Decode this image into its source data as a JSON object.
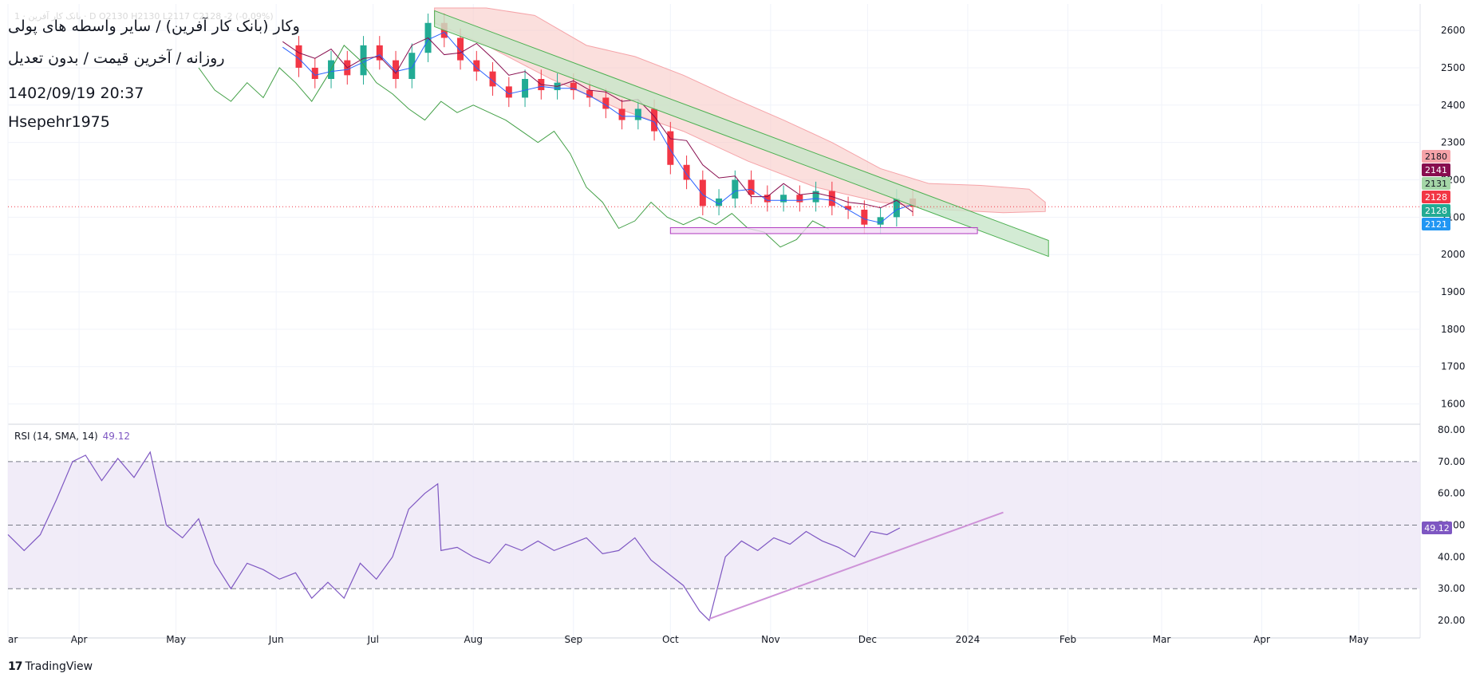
{
  "overlay": {
    "title": "وکار (بانک کار آفرین) / سایر واسطه های پولی",
    "subtitle": "روزانه / آخرین قیمت / بدون تعدیل",
    "datetime": "1402/09/19 20:37",
    "author": "Hsepehr1975",
    "ohlc_line": "بانک کار آفرین · 1 · D  O2130  H2130  L2117  C2128  -2 (-0.09%)"
  },
  "footer": {
    "brand": "TradingView"
  },
  "colors": {
    "up": "#22ab94",
    "down": "#f23645",
    "kijun": "#880e4f",
    "tenkan": "#2962ff",
    "chikou": "#43a047",
    "cloud": "#f8c9c6",
    "channel_fill": "#c8e6c9",
    "channel_stroke": "#4caf50",
    "zone_fill": "#f3d9f5",
    "zone_stroke": "#b03cbf",
    "rsi": "#7e57c2",
    "rsi_band": "#ede7f6"
  },
  "chart_data": [
    {
      "type": "candlestick",
      "title": "وکار (بانک کار آفرین) / سایر واسطه های پولی",
      "ylim": [
        1550,
        2660
      ],
      "yticks": [
        1600,
        1700,
        1800,
        1900,
        2000,
        2100,
        2200,
        2300,
        2400,
        2500,
        2600
      ],
      "xlim": [
        "2023-03-10",
        "2024-05-20"
      ],
      "xtick_labels": [
        {
          "label": "ar",
          "date": "2023-03-10"
        },
        {
          "label": "Apr",
          "date": "2023-04-01"
        },
        {
          "label": "May",
          "date": "2023-05-01"
        },
        {
          "label": "Jun",
          "date": "2023-06-01"
        },
        {
          "label": "Jul",
          "date": "2023-07-01"
        },
        {
          "label": "Aug",
          "date": "2023-08-01"
        },
        {
          "label": "Sep",
          "date": "2023-09-01"
        },
        {
          "label": "Oct",
          "date": "2023-10-01"
        },
        {
          "label": "Nov",
          "date": "2023-11-01"
        },
        {
          "label": "Dec",
          "date": "2023-12-01"
        },
        {
          "label": "2024",
          "date": "2024-01-01"
        },
        {
          "label": "Feb",
          "date": "2024-02-01"
        },
        {
          "label": "Mar",
          "date": "2024-03-01"
        },
        {
          "label": "Apr",
          "date": "2024-04-01"
        },
        {
          "label": "May",
          "date": "2024-05-01"
        }
      ],
      "price_close_series": [
        [
          "2023-06-03",
          2560
        ],
        [
          "2023-06-08",
          2500
        ],
        [
          "2023-06-13",
          2470
        ],
        [
          "2023-06-18",
          2520
        ],
        [
          "2023-06-23",
          2480
        ],
        [
          "2023-06-28",
          2560
        ],
        [
          "2023-07-03",
          2520
        ],
        [
          "2023-07-08",
          2470
        ],
        [
          "2023-07-13",
          2540
        ],
        [
          "2023-07-18",
          2620
        ],
        [
          "2023-07-23",
          2580
        ],
        [
          "2023-07-28",
          2520
        ],
        [
          "2023-08-02",
          2490
        ],
        [
          "2023-08-07",
          2450
        ],
        [
          "2023-08-12",
          2420
        ],
        [
          "2023-08-17",
          2470
        ],
        [
          "2023-08-22",
          2440
        ],
        [
          "2023-08-27",
          2460
        ],
        [
          "2023-09-01",
          2440
        ],
        [
          "2023-09-06",
          2420
        ],
        [
          "2023-09-11",
          2390
        ],
        [
          "2023-09-16",
          2360
        ],
        [
          "2023-09-21",
          2390
        ],
        [
          "2023-09-26",
          2330
        ],
        [
          "2023-10-01",
          2240
        ],
        [
          "2023-10-06",
          2200
        ],
        [
          "2023-10-11",
          2130
        ],
        [
          "2023-10-16",
          2150
        ],
        [
          "2023-10-21",
          2200
        ],
        [
          "2023-10-26",
          2160
        ],
        [
          "2023-10-31",
          2140
        ],
        [
          "2023-11-05",
          2160
        ],
        [
          "2023-11-10",
          2140
        ],
        [
          "2023-11-15",
          2170
        ],
        [
          "2023-11-20",
          2130
        ],
        [
          "2023-11-25",
          2120
        ],
        [
          "2023-11-30",
          2080
        ],
        [
          "2023-12-05",
          2100
        ],
        [
          "2023-12-10",
          2150
        ],
        [
          "2023-12-15",
          2128
        ]
      ],
      "price_scale_labels": [
        {
          "value": 2180,
          "color": "#f5a3a8",
          "text_color": "#131722"
        },
        {
          "value": 2141,
          "color": "#880e4f",
          "text_color": "#ffffff"
        },
        {
          "value": 2131,
          "color": "#a5d6a7",
          "text_color": "#131722"
        },
        {
          "value": 2128,
          "color": "#f23645",
          "text_color": "#ffffff"
        },
        {
          "value": 2128,
          "color": "#22ab94",
          "text_color": "#ffffff"
        },
        {
          "value": 2121,
          "color": "#2196f3",
          "text_color": "#ffffff"
        }
      ],
      "last_price": 2128,
      "descending_channel": {
        "start": [
          "2023-07-20",
          2610
        ],
        "end": [
          "2024-01-26",
          1995
        ],
        "width": 20
      },
      "support_zone": {
        "from": "2023-10-01",
        "to": "2024-01-04",
        "low": 2056,
        "high": 2072
      }
    },
    {
      "type": "line",
      "name": "RSI (14, SMA, 14)",
      "value_label": "49.12",
      "ylim": [
        17,
        81
      ],
      "yticks": [
        20,
        30,
        40,
        50,
        60,
        70,
        80
      ],
      "bands": {
        "upper": 70,
        "middle": 50,
        "lower": 30
      },
      "series": [
        [
          "2023-03-10",
          47
        ],
        [
          "2023-03-15",
          42
        ],
        [
          "2023-03-20",
          47
        ],
        [
          "2023-03-25",
          58
        ],
        [
          "2023-03-30",
          70
        ],
        [
          "2023-04-03",
          72
        ],
        [
          "2023-04-08",
          64
        ],
        [
          "2023-04-13",
          71
        ],
        [
          "2023-04-18",
          65
        ],
        [
          "2023-04-23",
          73
        ],
        [
          "2023-04-28",
          50
        ],
        [
          "2023-05-03",
          46
        ],
        [
          "2023-05-08",
          52
        ],
        [
          "2023-05-13",
          38
        ],
        [
          "2023-05-18",
          30
        ],
        [
          "2023-05-23",
          38
        ],
        [
          "2023-05-28",
          36
        ],
        [
          "2023-06-02",
          33
        ],
        [
          "2023-06-07",
          35
        ],
        [
          "2023-06-12",
          27
        ],
        [
          "2023-06-17",
          32
        ],
        [
          "2023-06-22",
          27
        ],
        [
          "2023-06-27",
          38
        ],
        [
          "2023-07-02",
          33
        ],
        [
          "2023-07-07",
          40
        ],
        [
          "2023-07-12",
          55
        ],
        [
          "2023-07-17",
          60
        ],
        [
          "2023-07-21",
          63
        ],
        [
          "2023-07-22",
          42
        ],
        [
          "2023-07-27",
          43
        ],
        [
          "2023-08-01",
          40
        ],
        [
          "2023-08-06",
          38
        ],
        [
          "2023-08-11",
          44
        ],
        [
          "2023-08-16",
          42
        ],
        [
          "2023-08-21",
          45
        ],
        [
          "2023-08-26",
          42
        ],
        [
          "2023-08-31",
          44
        ],
        [
          "2023-09-05",
          46
        ],
        [
          "2023-09-10",
          41
        ],
        [
          "2023-09-15",
          42
        ],
        [
          "2023-09-20",
          46
        ],
        [
          "2023-09-25",
          39
        ],
        [
          "2023-09-30",
          35
        ],
        [
          "2023-10-05",
          31
        ],
        [
          "2023-10-10",
          23
        ],
        [
          "2023-10-13",
          20
        ],
        [
          "2023-10-18",
          40
        ],
        [
          "2023-10-23",
          45
        ],
        [
          "2023-10-28",
          42
        ],
        [
          "2023-11-02",
          46
        ],
        [
          "2023-11-07",
          44
        ],
        [
          "2023-11-12",
          48
        ],
        [
          "2023-11-17",
          45
        ],
        [
          "2023-11-22",
          43
        ],
        [
          "2023-11-27",
          40
        ],
        [
          "2023-12-02",
          48
        ],
        [
          "2023-12-07",
          47
        ],
        [
          "2023-12-11",
          49.12
        ]
      ],
      "trendline": {
        "start": [
          "2023-10-13",
          20.5
        ],
        "end": [
          "2024-01-12",
          54
        ]
      }
    }
  ]
}
